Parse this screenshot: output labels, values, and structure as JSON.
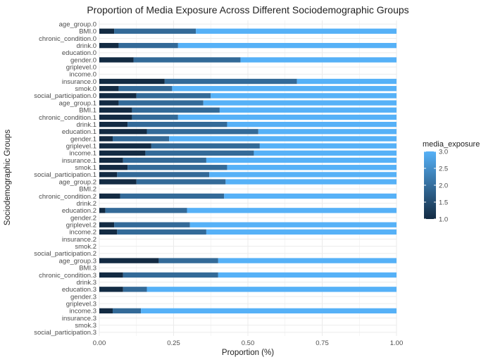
{
  "chart_data": {
    "type": "bar",
    "orientation": "horizontal",
    "stacked": true,
    "title": "Proportion of Media Exposure Across Different Sociodemographic Groups",
    "xlabel": "Proportion (%)",
    "ylabel": "Sociodemographic Groups",
    "xlim": [
      0,
      1
    ],
    "x_ticks": [
      "0.00",
      "0.25",
      "0.50",
      "0.75",
      "1.00"
    ],
    "grid": true,
    "legend": {
      "title": "media_exposure",
      "position": "right",
      "type": "colorbar",
      "range": [
        1.0,
        3.0
      ],
      "ticks": [
        "1.0",
        "1.5",
        "2.0",
        "2.5",
        "3.0"
      ],
      "low_color": "#132b43",
      "high_color": "#56b1f7"
    },
    "colors": {
      "1": "#132b43",
      "2": "#336a98",
      "3": "#56b1f7"
    },
    "segment_levels": [
      1,
      2,
      3
    ],
    "categories": [
      "age_group.0",
      "BMI.0",
      "chronic_condition.0",
      "drink.0",
      "education.0",
      "gender.0",
      "griplevel.0",
      "income.0",
      "insurance.0",
      "smok.0",
      "social_participation.0",
      "age_group.1",
      "BMI.1",
      "chronic_condition.1",
      "drink.1",
      "education.1",
      "gender.1",
      "griplevel.1",
      "income.1",
      "insurance.1",
      "smok.1",
      "social_participation.1",
      "age_group.2",
      "BMI.2",
      "chronic_condition.2",
      "drink.2",
      "education.2",
      "gender.2",
      "griplevel.2",
      "income.2",
      "insurance.2",
      "smok.2",
      "social_participation.2",
      "age_group.3",
      "BMI.3",
      "chronic_condition.3",
      "drink.3",
      "education.3",
      "gender.3",
      "griplevel.3",
      "income.3",
      "insurance.3",
      "smok.3",
      "social_participation.3"
    ],
    "series": [
      {
        "level": 1,
        "values": [
          0,
          0.05,
          0,
          0.065,
          0,
          0.115,
          0,
          0,
          0.22,
          0.065,
          0.125,
          0.065,
          0.11,
          0.11,
          0.095,
          0.16,
          0.045,
          0.175,
          0.155,
          0.08,
          0.095,
          0.06,
          0.125,
          0,
          0.07,
          0,
          0.02,
          0,
          0.05,
          0.06,
          0,
          0,
          0,
          0.2,
          0,
          0.08,
          0,
          0.08,
          0,
          0,
          0.045,
          0,
          0,
          0
        ]
      },
      {
        "level": 2,
        "values": [
          0,
          0.275,
          0,
          0.2,
          0,
          0.36,
          0,
          0,
          0.445,
          0.18,
          0.25,
          0.285,
          0.295,
          0.155,
          0.335,
          0.375,
          0.19,
          0.365,
          0.365,
          0.28,
          0.335,
          0.31,
          0.3,
          0,
          0.35,
          0,
          0.275,
          0,
          0.255,
          0.3,
          0,
          0,
          0,
          0.2,
          0,
          0.32,
          0,
          0.08,
          0,
          0,
          0.095,
          0,
          0,
          0
        ]
      },
      {
        "level": 3,
        "values": [
          0,
          0.675,
          0,
          0.735,
          0,
          0.525,
          0,
          0,
          0.335,
          0.755,
          0.625,
          0.65,
          0.595,
          0.735,
          0.57,
          0.465,
          0.765,
          0.46,
          0.48,
          0.64,
          0.57,
          0.63,
          0.575,
          0,
          0.58,
          0,
          0.705,
          0,
          0.695,
          0.64,
          0,
          0,
          0,
          0.6,
          0,
          0.6,
          0,
          0.84,
          0,
          0,
          0.86,
          0,
          0,
          0
        ]
      }
    ]
  }
}
